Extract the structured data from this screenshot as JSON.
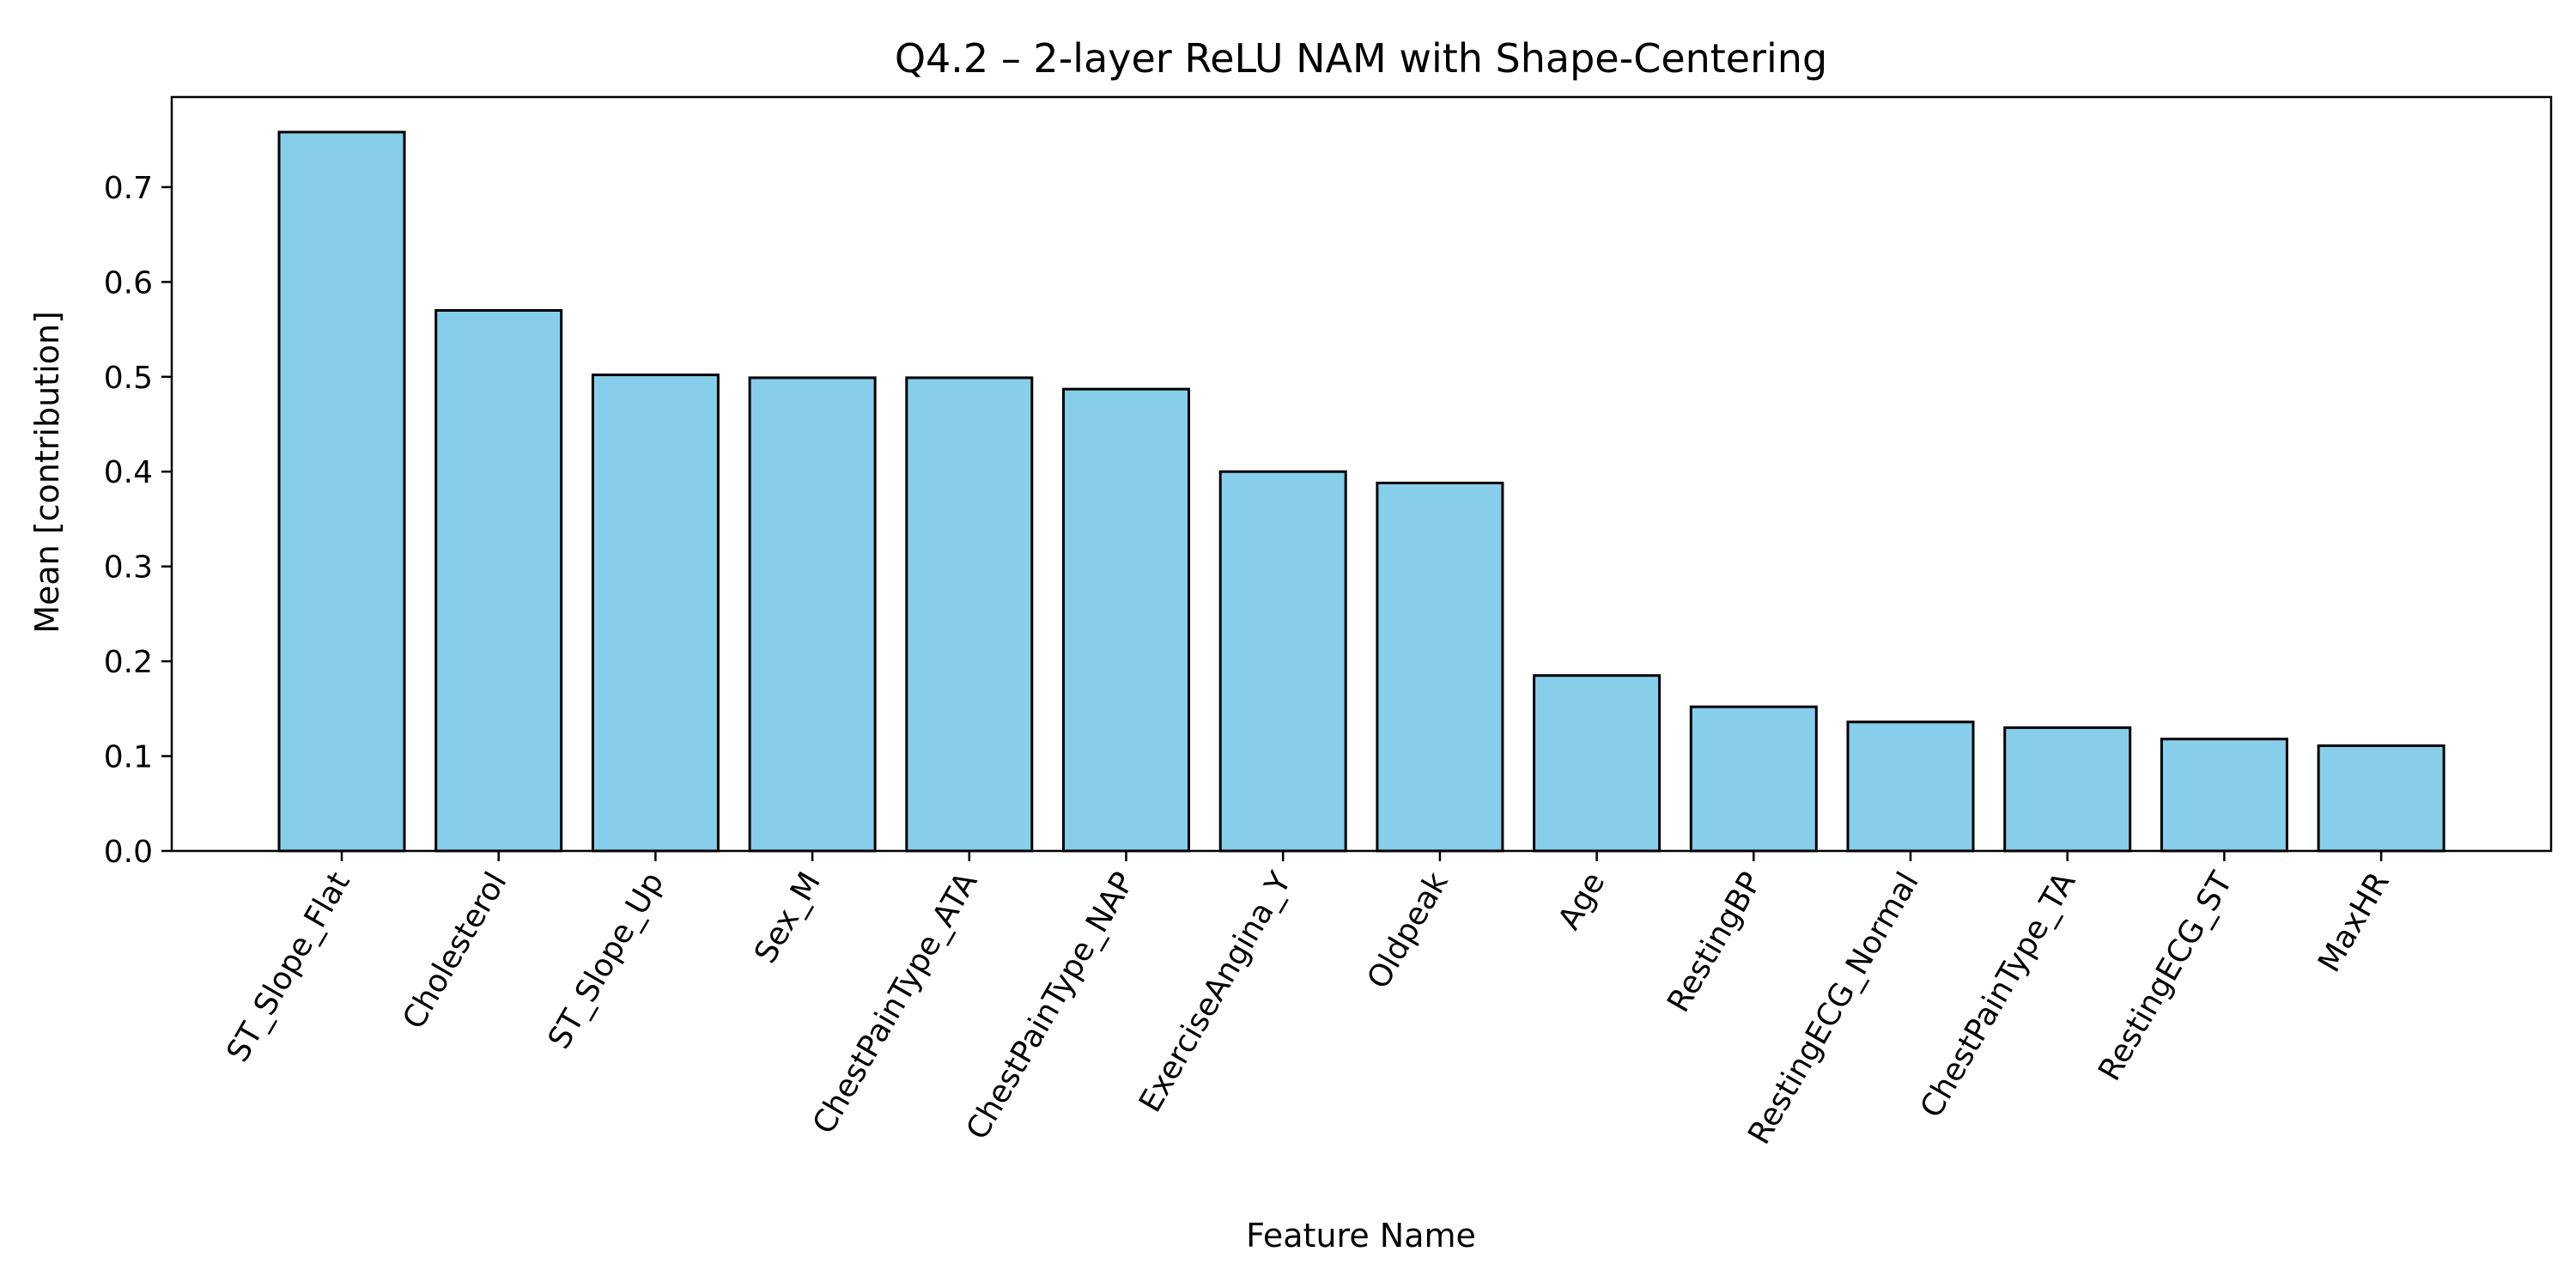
{
  "chart_data": {
    "type": "bar",
    "title": "Q4.2 – 2-layer ReLU NAM with Shape-Centering",
    "xlabel": "Feature Name",
    "ylabel": "Mean [contribution]",
    "categories": [
      "ST_Slope_Flat",
      "Cholesterol",
      "ST_Slope_Up",
      "Sex_M",
      "ChestPainType_ATA",
      "ChestPainType_NAP",
      "ExerciseAngina_Y",
      "Oldpeak",
      "Age",
      "RestingBP",
      "RestingECG_Normal",
      "ChestPainType_TA",
      "RestingECG_ST",
      "MaxHR"
    ],
    "values": [
      0.758,
      0.57,
      0.502,
      0.499,
      0.499,
      0.487,
      0.4,
      0.388,
      0.185,
      0.152,
      0.136,
      0.13,
      0.118,
      0.111
    ],
    "yticks": [
      "0.0",
      "0.1",
      "0.2",
      "0.3",
      "0.4",
      "0.5",
      "0.6",
      "0.7"
    ],
    "ylim": [
      0,
      0.795
    ],
    "grid": false,
    "legend": "none",
    "bar_color": "#87CEEB",
    "edge_color": "#000000"
  }
}
